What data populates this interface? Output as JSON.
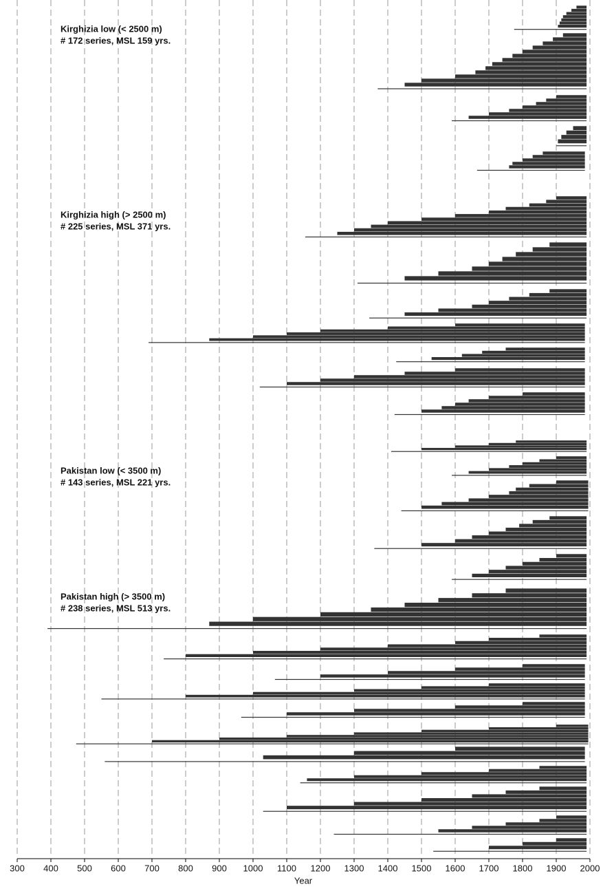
{
  "chart_data": {
    "type": "range-bar",
    "xlabel": "Year",
    "xlim": [
      300,
      2000
    ],
    "xticks": [
      300,
      400,
      500,
      600,
      700,
      800,
      900,
      1000,
      1100,
      1200,
      1300,
      1400,
      1500,
      1600,
      1700,
      1800,
      1900,
      2000
    ],
    "grid": true,
    "color": "#333333",
    "groups": [
      {
        "name": "Kirghizia low (< 2500 m)",
        "note": "# 172 series, MSL 159 yrs."
      },
      {
        "name": "Kirghizia high (> 2500 m)",
        "note": "# 225 series, MSL 371 yrs."
      },
      {
        "name": "Pakistan low (< 3500 m)",
        "note": "# 143 series, MSL 221 yrs."
      },
      {
        "name": "Pakistan high (> 3500 m)",
        "note": "# 238 series, MSL 513 yrs."
      }
    ],
    "sites": [
      {
        "starts": [
          1960,
          1945,
          1930,
          1920,
          1915,
          1910,
          1905,
          1775
        ],
        "end": 1990
      },
      {
        "starts": [
          1920,
          1890,
          1860,
          1830,
          1800,
          1770,
          1740,
          1710,
          1690,
          1660,
          1600,
          1500,
          1450,
          1370
        ],
        "end": 1990
      },
      {
        "starts": [
          1900,
          1870,
          1840,
          1800,
          1760,
          1700,
          1640,
          1590
        ],
        "end": 1990
      },
      {
        "starts": [
          1950,
          1930,
          1915,
          1905,
          1900
        ],
        "end": 1990
      },
      {
        "starts": [
          1860,
          1830,
          1800,
          1770,
          1760,
          1665
        ],
        "end": 1985
      },
      {
        "starts": [
          1900,
          1870,
          1820,
          1750,
          1700,
          1600,
          1500,
          1400,
          1350,
          1300,
          1250,
          1155
        ],
        "end": 1990
      },
      {
        "starts": [
          1880,
          1830,
          1780,
          1740,
          1700,
          1650,
          1550,
          1450,
          1310
        ],
        "end": 1990
      },
      {
        "starts": [
          1880,
          1820,
          1760,
          1700,
          1650,
          1550,
          1450,
          1345
        ],
        "end": 1990
      },
      {
        "starts": [
          1600,
          1400,
          1200,
          1100,
          1000,
          870,
          690
        ],
        "end": 1985
      },
      {
        "starts": [
          1750,
          1680,
          1620,
          1530,
          1425
        ],
        "end": 1985
      },
      {
        "starts": [
          1600,
          1450,
          1300,
          1200,
          1100,
          1020
        ],
        "end": 1985
      },
      {
        "starts": [
          1800,
          1700,
          1640,
          1600,
          1560,
          1500,
          1420
        ],
        "end": 1985
      },
      {
        "starts": [
          1780,
          1700,
          1600,
          1500,
          1410
        ],
        "end": 1990
      },
      {
        "starts": [
          1900,
          1850,
          1800,
          1760,
          1700,
          1640,
          1590
        ],
        "end": 1990
      },
      {
        "starts": [
          1900,
          1820,
          1780,
          1760,
          1700,
          1640,
          1560,
          1500,
          1440
        ],
        "end": 1995
      },
      {
        "starts": [
          1880,
          1830,
          1790,
          1750,
          1700,
          1650,
          1600,
          1500,
          1360
        ],
        "end": 1990
      },
      {
        "starts": [
          1900,
          1850,
          1800,
          1750,
          1700,
          1650,
          1590
        ],
        "end": 1990
      },
      {
        "starts": [
          1750,
          1650,
          1550,
          1450,
          1350,
          1200,
          1000,
          870,
          390
        ],
        "end": 1990
      },
      {
        "starts": [
          1850,
          1700,
          1600,
          1400,
          1200,
          1000,
          800,
          735
        ],
        "end": 1990
      },
      {
        "starts": [
          1800,
          1600,
          1400,
          1200,
          1065
        ],
        "end": 1985
      },
      {
        "starts": [
          1700,
          1500,
          1300,
          1000,
          800,
          550
        ],
        "end": 1985
      },
      {
        "starts": [
          1800,
          1600,
          1300,
          1100,
          965
        ],
        "end": 1985
      },
      {
        "starts": [
          1900,
          1700,
          1500,
          1300,
          1100,
          900,
          700,
          475
        ],
        "end": 1995
      },
      {
        "starts": [
          1600,
          1300,
          1030,
          560
        ],
        "end": 1985
      },
      {
        "starts": [
          1850,
          1700,
          1500,
          1300,
          1160,
          1140
        ],
        "end": 1990
      },
      {
        "starts": [
          1850,
          1750,
          1650,
          1500,
          1300,
          1100,
          1030
        ],
        "end": 1990
      },
      {
        "starts": [
          1900,
          1850,
          1750,
          1650,
          1550,
          1240
        ],
        "end": 1990
      },
      {
        "starts": [
          1900,
          1800,
          1700,
          1535
        ],
        "end": 1990
      }
    ]
  }
}
